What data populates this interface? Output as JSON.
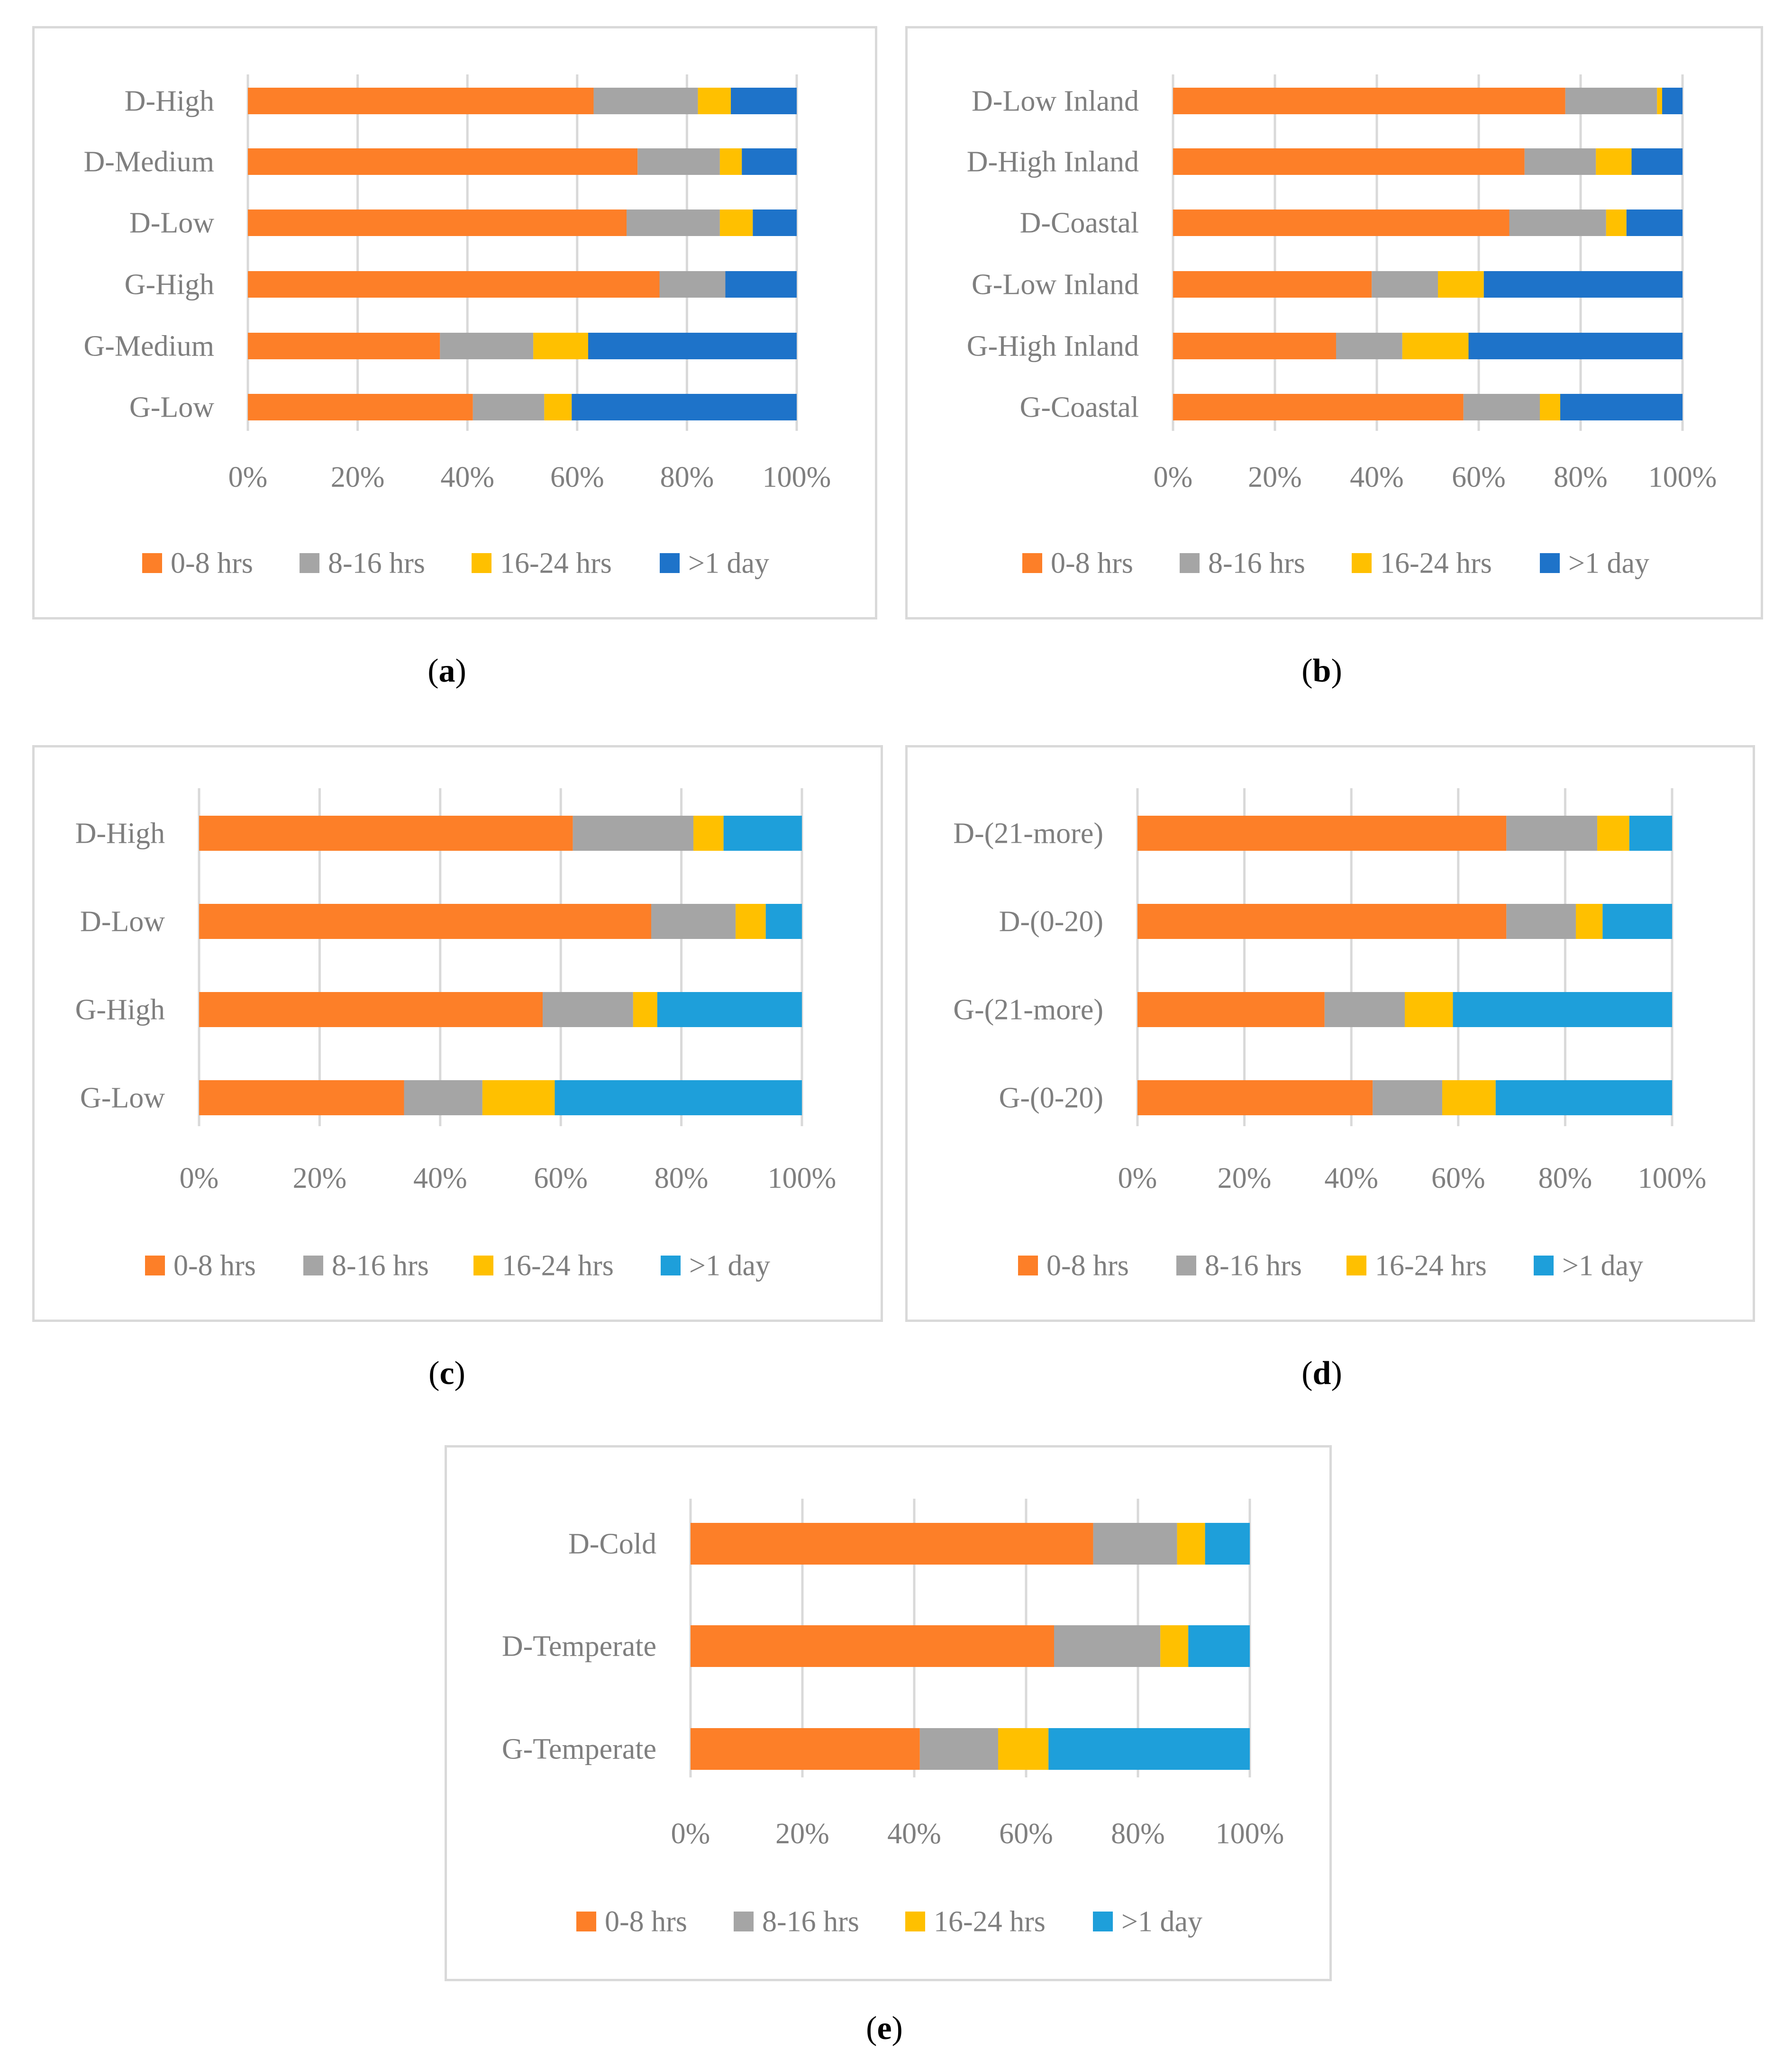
{
  "legend": [
    {
      "name": "0-8 hrs",
      "color": "#FD7F28"
    },
    {
      "name": "8-16 hrs",
      "color": "#A5A5A5"
    },
    {
      "name": "16-24 hrs",
      "color": "#FFC000"
    },
    {
      "name": ">1 day",
      "color": "#1E73C9"
    }
  ],
  "chart_data": [
    {
      "id": "a",
      "caption": "a",
      "type": "bar",
      "stacked": true,
      "orientation": "horizontal",
      "percent": true,
      "categories": [
        "D-High",
        "D-Medium",
        "D-Low",
        "G-High",
        "G-Medium",
        "G-Low"
      ],
      "xlim": [
        0,
        100
      ],
      "ticks": [
        "0%",
        "20%",
        "40%",
        "60%",
        "80%",
        "100%"
      ],
      "series": [
        {
          "name": "0-8 hrs",
          "color": "#FD7F28",
          "values": [
            63,
            71,
            69,
            75,
            35,
            41
          ]
        },
        {
          "name": "8-16 hrs",
          "color": "#A5A5A5",
          "values": [
            19,
            15,
            17,
            12,
            17,
            13
          ]
        },
        {
          "name": "16-24 hrs",
          "color": "#FFC000",
          "values": [
            6,
            4,
            6,
            0,
            10,
            5
          ]
        },
        {
          "name": ">1 day",
          "color": "#1E73C9",
          "values": [
            12,
            10,
            8,
            13,
            38,
            41
          ]
        }
      ],
      "legend_position": "bottom"
    },
    {
      "id": "b",
      "caption": "b",
      "type": "bar",
      "stacked": true,
      "orientation": "horizontal",
      "percent": true,
      "categories": [
        "D-Low Inland",
        "D-High Inland",
        "D-Coastal",
        "G-Low Inland",
        "G-High Inland",
        "G-Coastal"
      ],
      "xlim": [
        0,
        100
      ],
      "ticks": [
        "0%",
        "20%",
        "40%",
        "60%",
        "80%",
        "100%"
      ],
      "series": [
        {
          "name": "0-8 hrs",
          "color": "#FD7F28",
          "values": [
            77,
            69,
            66,
            39,
            32,
            57
          ]
        },
        {
          "name": "8-16 hrs",
          "color": "#A5A5A5",
          "values": [
            18,
            14,
            19,
            13,
            13,
            15
          ]
        },
        {
          "name": "16-24 hrs",
          "color": "#FFC000",
          "values": [
            1,
            7,
            4,
            9,
            13,
            4
          ]
        },
        {
          "name": ">1 day",
          "color": "#1E73C9",
          "values": [
            4,
            10,
            11,
            39,
            42,
            24
          ]
        }
      ],
      "legend_position": "bottom"
    },
    {
      "id": "c",
      "caption": "c",
      "type": "bar",
      "stacked": true,
      "orientation": "horizontal",
      "percent": true,
      "categories": [
        "D-High",
        "D-Low",
        "G-High",
        "G-Low"
      ],
      "xlim": [
        0,
        100
      ],
      "ticks": [
        "0%",
        "20%",
        "40%",
        "60%",
        "80%",
        "100%"
      ],
      "series": [
        {
          "name": "0-8 hrs",
          "color": "#FD7F28",
          "values": [
            62,
            75,
            57,
            34
          ]
        },
        {
          "name": "8-16 hrs",
          "color": "#A5A5A5",
          "values": [
            20,
            14,
            15,
            13
          ]
        },
        {
          "name": "16-24 hrs",
          "color": "#FFC000",
          "values": [
            5,
            5,
            4,
            12
          ]
        },
        {
          "name": ">1 day",
          "color": "#1E9FDA",
          "values": [
            13,
            6,
            24,
            41
          ]
        }
      ],
      "legend_position": "bottom"
    },
    {
      "id": "d",
      "caption": "d",
      "type": "bar",
      "stacked": true,
      "orientation": "horizontal",
      "percent": true,
      "categories": [
        "D-(21-more)",
        "D-(0-20)",
        "G-(21-more)",
        "G-(0-20)"
      ],
      "xlim": [
        0,
        100
      ],
      "ticks": [
        "0%",
        "20%",
        "40%",
        "60%",
        "80%",
        "100%"
      ],
      "series": [
        {
          "name": "0-8 hrs",
          "color": "#FD7F28",
          "values": [
            69,
            69,
            35,
            44
          ]
        },
        {
          "name": "8-16 hrs",
          "color": "#A5A5A5",
          "values": [
            17,
            13,
            15,
            13
          ]
        },
        {
          "name": "16-24 hrs",
          "color": "#FFC000",
          "values": [
            6,
            5,
            9,
            10
          ]
        },
        {
          "name": ">1 day",
          "color": "#1E9FDA",
          "values": [
            8,
            13,
            41,
            33
          ]
        }
      ],
      "legend_position": "bottom"
    },
    {
      "id": "e",
      "caption": "e",
      "type": "bar",
      "stacked": true,
      "orientation": "horizontal",
      "percent": true,
      "categories": [
        "D-Cold",
        "D-Temperate",
        "G-Temperate"
      ],
      "xlim": [
        0,
        100
      ],
      "ticks": [
        "0%",
        "20%",
        "40%",
        "60%",
        "80%",
        "100%"
      ],
      "series": [
        {
          "name": "0-8 hrs",
          "color": "#FD7F28",
          "values": [
            72,
            65,
            41
          ]
        },
        {
          "name": "8-16 hrs",
          "color": "#A5A5A5",
          "values": [
            15,
            19,
            14
          ]
        },
        {
          "name": "16-24 hrs",
          "color": "#FFC000",
          "values": [
            5,
            5,
            9
          ]
        },
        {
          "name": ">1 day",
          "color": "#1E9FDA",
          "values": [
            8,
            11,
            36
          ]
        }
      ],
      "legend_position": "bottom"
    }
  ]
}
